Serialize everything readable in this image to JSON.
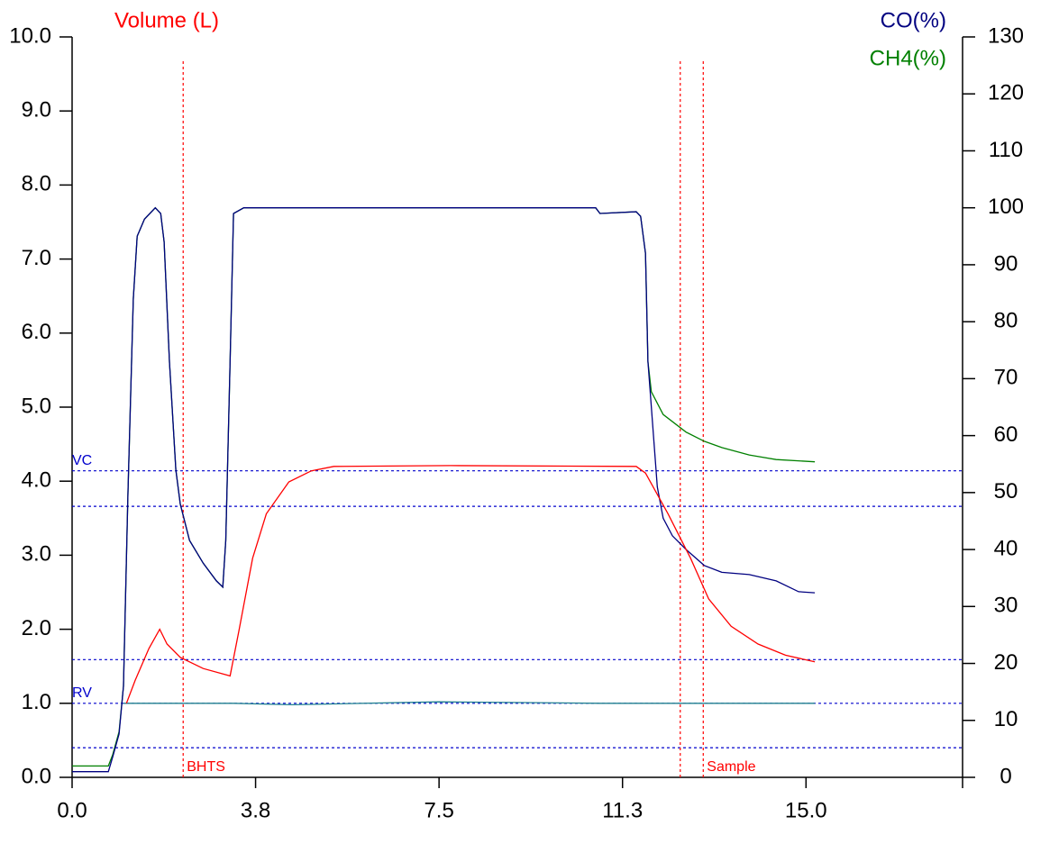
{
  "chart_data": {
    "type": "line",
    "xlim": [
      0,
      18.2
    ],
    "xticks": [
      {
        "value": 0,
        "label": "0.0"
      },
      {
        "value": 3.75,
        "label": "3.8"
      },
      7.5,
      {
        "value": 11.25,
        "label": "11.3"
      },
      {
        "value": 15,
        "label": "15.0"
      }
    ],
    "ylim": [
      0,
      10
    ],
    "yticks": [
      {
        "value": 0,
        "label": "0.0"
      },
      {
        "value": 1,
        "label": "1.0"
      },
      {
        "value": 2,
        "label": "2.0"
      },
      {
        "value": 3,
        "label": "3.0"
      },
      {
        "value": 4,
        "label": "4.0"
      },
      {
        "value": 5,
        "label": "5.0"
      },
      {
        "value": 6,
        "label": "6.0"
      },
      {
        "value": 7,
        "label": "7.0"
      },
      {
        "value": 8,
        "label": "8.0"
      },
      {
        "value": 9,
        "label": "9.0"
      },
      {
        "value": 10,
        "label": "10.0"
      }
    ],
    "y2lim": [
      0,
      130
    ],
    "y2ticks": [
      0,
      10,
      20,
      30,
      40,
      50,
      60,
      70,
      80,
      90,
      100,
      110,
      120,
      130
    ],
    "hline_color": "#0000cc",
    "vline_color": "#ff0000",
    "hlines": [
      {
        "value": 4.14,
        "label": "VC"
      },
      {
        "value": 3.66
      },
      {
        "value": 1.59
      },
      {
        "value": 1.0,
        "label": "RV"
      },
      {
        "value": 0.4
      }
    ],
    "vlines": [
      {
        "value": 2.27,
        "label": "BHTS"
      },
      {
        "value": 12.43
      },
      {
        "value": 12.9,
        "label": "Sample"
      }
    ],
    "series": [
      {
        "name": "Volume (L)",
        "color": "#ff0000",
        "x": [
          1.11,
          1.29,
          1.57,
          1.79,
          1.94,
          2.21,
          2.68,
          3.23,
          3.41,
          3.69,
          3.97,
          4.43,
          4.89,
          5.35,
          7.75,
          11.53,
          11.72,
          12.18,
          12.64,
          13.01,
          13.47,
          14.02,
          14.58,
          15.18
        ],
        "values": [
          1.0,
          1.31,
          1.74,
          2.0,
          1.8,
          1.62,
          1.47,
          1.37,
          1.98,
          2.96,
          3.56,
          3.99,
          4.14,
          4.2,
          4.21,
          4.2,
          4.11,
          3.56,
          2.96,
          2.41,
          2.04,
          1.8,
          1.65,
          1.56
        ]
      },
      {
        "name": "CO(%)",
        "color": "#000080",
        "axis": "y2",
        "x": [
          0,
          0.74,
          0.83,
          0.96,
          1.05,
          1.14,
          1.25,
          1.33,
          1.48,
          1.7,
          1.81,
          1.88,
          1.99,
          2.12,
          2.21,
          2.4,
          2.68,
          2.95,
          3.08,
          3.14,
          3.23,
          3.3,
          3.51,
          4.43,
          10.7,
          10.79,
          11.53,
          11.62,
          11.72,
          11.77,
          11.84,
          11.96,
          12.08,
          12.27,
          12.55,
          12.92,
          13.28,
          13.84,
          14.39,
          14.85,
          15.18
        ],
        "values": [
          1,
          1,
          3.6,
          7.6,
          16,
          49.5,
          84,
          95,
          98,
          100,
          99,
          94,
          73,
          54,
          48,
          41.6,
          37.6,
          34.5,
          33.4,
          41.6,
          73,
          99,
          100,
          100,
          100,
          99,
          99.3,
          98.5,
          92,
          73,
          65,
          51,
          45.5,
          42.4,
          40,
          37.2,
          36,
          35.6,
          34.5,
          32.6,
          32.4
        ]
      },
      {
        "name": "CH4(%)",
        "color": "#008000",
        "axis": "y2",
        "x": [
          0,
          0.74,
          0.83,
          0.96,
          1.05,
          1.14,
          1.25,
          1.33,
          1.48,
          1.7,
          1.81,
          1.88,
          1.99,
          2.12,
          2.21,
          2.4,
          2.68,
          2.95,
          3.08,
          3.14,
          3.23,
          3.3,
          3.51,
          4.43,
          10.7,
          10.79,
          11.53,
          11.62,
          11.72,
          11.77,
          11.84,
          12.08,
          12.55,
          12.92,
          13.28,
          13.84,
          14.39,
          15.18
        ],
        "values": [
          2,
          2,
          4,
          8,
          16,
          49.5,
          84,
          95,
          98,
          100,
          99,
          94,
          73,
          54,
          48,
          41.6,
          37.6,
          34.5,
          33.4,
          41.6,
          73,
          99,
          100,
          100,
          100,
          99,
          99.3,
          98.5,
          92,
          73,
          67.7,
          63.7,
          60.6,
          59,
          57.9,
          56.6,
          55.8,
          55.4
        ]
      },
      {
        "color": "#1f7f8f",
        "x": [
          1.05,
          3.3,
          4.5,
          7.5,
          10.8,
          15.18
        ],
        "values": [
          1.0,
          1.0,
          0.98,
          1.02,
          1.0,
          1.0
        ]
      }
    ]
  }
}
